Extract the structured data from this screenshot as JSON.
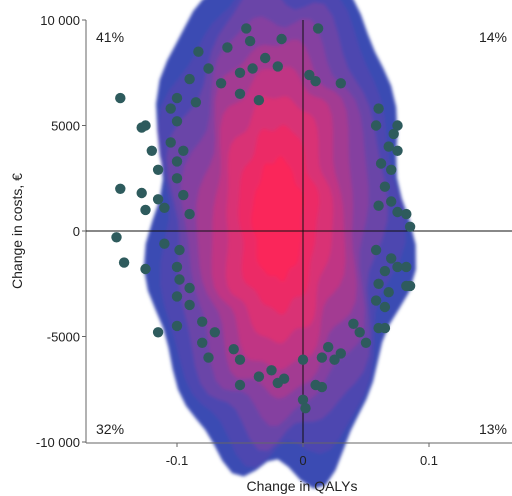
{
  "chart_data": {
    "type": "scatter",
    "title": "",
    "xlabel": "Change in QALYs",
    "ylabel": "Change in costs, €",
    "xlim": [
      -0.17,
      0.165
    ],
    "ylim": [
      -10000,
      10000
    ],
    "x_ticks": [
      -0.1,
      0,
      0.1
    ],
    "x_tick_labels": [
      "-0.1",
      "0",
      "0.1"
    ],
    "y_ticks": [
      -10000,
      -5000,
      0,
      5000,
      10000
    ],
    "y_tick_labels": [
      "-10 000",
      "-5000",
      "0",
      "5000",
      "10 000"
    ],
    "quadrant_labels": {
      "top_left": "41%",
      "top_right": "14%",
      "bottom_left": "32%",
      "bottom_right": "13%"
    },
    "density": {
      "center": [
        -0.02,
        500
      ],
      "color_outer": "#3c4fb0",
      "color_inner": "#ff1a55",
      "levels": [
        {
          "hx": 0.102,
          "hy": 12300,
          "color": "#3b4cb3"
        },
        {
          "hx": 0.094,
          "hy": 11400,
          "color": "#4e46b0"
        },
        {
          "hx": 0.083,
          "hy": 10400,
          "color": "#6a44a8"
        },
        {
          "hx": 0.072,
          "hy": 9300,
          "color": "#8540a0"
        },
        {
          "hx": 0.062,
          "hy": 8200,
          "color": "#a33a92"
        },
        {
          "hx": 0.052,
          "hy": 7000,
          "color": "#c03584"
        },
        {
          "hx": 0.042,
          "hy": 5700,
          "color": "#d93175"
        },
        {
          "hx": 0.031,
          "hy": 4300,
          "color": "#ec2b66"
        },
        {
          "hx": 0.02,
          "hy": 2800,
          "color": "#fa255a"
        }
      ]
    },
    "points_color": "#2e5b5d",
    "points": [
      [
        -0.045,
        9600
      ],
      [
        0.012,
        9600
      ],
      [
        -0.042,
        9000
      ],
      [
        -0.017,
        9100
      ],
      [
        -0.083,
        8500
      ],
      [
        -0.06,
        8700
      ],
      [
        -0.03,
        8200
      ],
      [
        -0.075,
        7700
      ],
      [
        -0.05,
        7500
      ],
      [
        -0.04,
        7700
      ],
      [
        -0.02,
        7800
      ],
      [
        0.005,
        7400
      ],
      [
        -0.09,
        7200
      ],
      [
        -0.065,
        7000
      ],
      [
        0.03,
        7000
      ],
      [
        -0.1,
        6300
      ],
      [
        -0.085,
        6100
      ],
      [
        -0.05,
        6500
      ],
      [
        -0.035,
        6200
      ],
      [
        0.01,
        7100
      ],
      [
        -0.145,
        6300
      ],
      [
        -0.105,
        5800
      ],
      [
        0.06,
        5800
      ],
      [
        -0.125,
        5000
      ],
      [
        0.075,
        5000
      ],
      [
        -0.1,
        5200
      ],
      [
        0.058,
        5000
      ],
      [
        -0.128,
        4900
      ],
      [
        0.072,
        4600
      ],
      [
        -0.105,
        4200
      ],
      [
        -0.12,
        3800
      ],
      [
        -0.095,
        3800
      ],
      [
        0.068,
        4000
      ],
      [
        0.075,
        3800
      ],
      [
        -0.1,
        3300
      ],
      [
        0.062,
        3200
      ],
      [
        -0.115,
        2900
      ],
      [
        0.07,
        2900
      ],
      [
        -0.1,
        2500
      ],
      [
        -0.128,
        1800
      ],
      [
        0.065,
        2100
      ],
      [
        -0.145,
        2000
      ],
      [
        -0.115,
        1500
      ],
      [
        0.07,
        1400
      ],
      [
        -0.11,
        1100
      ],
      [
        -0.125,
        1000
      ],
      [
        0.075,
        900
      ],
      [
        0.082,
        800
      ],
      [
        -0.095,
        1700
      ],
      [
        -0.09,
        800
      ],
      [
        0.06,
        1200
      ],
      [
        -0.148,
        -300
      ],
      [
        -0.11,
        -600
      ],
      [
        0.085,
        200
      ],
      [
        -0.098,
        -900
      ],
      [
        0.058,
        -900
      ],
      [
        0.07,
        -1300
      ],
      [
        -0.125,
        -1800
      ],
      [
        -0.142,
        -1500
      ],
      [
        -0.1,
        -1700
      ],
      [
        0.065,
        -1900
      ],
      [
        0.075,
        -1700
      ],
      [
        0.082,
        -1700
      ],
      [
        -0.098,
        -2300
      ],
      [
        0.06,
        -2500
      ],
      [
        -0.09,
        -2700
      ],
      [
        0.085,
        -2600
      ],
      [
        0.068,
        -2900
      ],
      [
        0.082,
        -2600
      ],
      [
        -0.1,
        -3100
      ],
      [
        0.058,
        -3300
      ],
      [
        -0.09,
        -3500
      ],
      [
        0.065,
        -3600
      ],
      [
        -0.08,
        -4300
      ],
      [
        -0.1,
        -4500
      ],
      [
        0.04,
        -4400
      ],
      [
        0.06,
        -4600
      ],
      [
        -0.115,
        -4800
      ],
      [
        -0.07,
        -4800
      ],
      [
        0.045,
        -4800
      ],
      [
        0.065,
        -4600
      ],
      [
        -0.08,
        -5300
      ],
      [
        0.02,
        -5500
      ],
      [
        -0.055,
        -5600
      ],
      [
        0.05,
        -5300
      ],
      [
        0.03,
        -5800
      ],
      [
        -0.075,
        -6000
      ],
      [
        -0.05,
        -6100
      ],
      [
        0.0,
        -6100
      ],
      [
        0.015,
        -6000
      ],
      [
        -0.025,
        -6600
      ],
      [
        0.025,
        -6100
      ],
      [
        -0.035,
        -6900
      ],
      [
        -0.015,
        -7000
      ],
      [
        0.01,
        -7300
      ],
      [
        -0.05,
        -7300
      ],
      [
        0.015,
        -7400
      ],
      [
        -0.02,
        -7200
      ],
      [
        0.0,
        -8000
      ],
      [
        0.002,
        -8400
      ]
    ]
  }
}
